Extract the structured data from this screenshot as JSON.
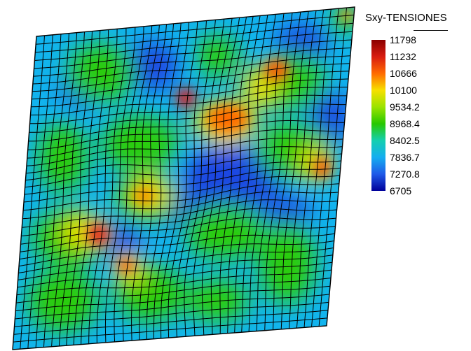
{
  "legend": {
    "title": "Sxy-TENSIONES",
    "ticks": [
      "11798",
      "11232",
      "10666",
      "10100",
      "9534.2",
      "8968.4",
      "8402.5",
      "7836.7",
      "7270.8",
      "6705"
    ],
    "colors": [
      "#8b0000",
      "#d81c10",
      "#ff6a00",
      "#f7e000",
      "#9be300",
      "#27c800",
      "#14cfb0",
      "#14aef0",
      "#1f5ae8",
      "#00009a"
    ]
  },
  "contour_hotspots": [
    {
      "level": "red",
      "center": [
        0.24,
        0.37
      ]
    },
    {
      "level": "red",
      "center": [
        0.82,
        0.65
      ]
    },
    {
      "level": "orange",
      "center": [
        0.66,
        0.25
      ]
    },
    {
      "level": "orange",
      "center": [
        0.74,
        0.48
      ]
    }
  ]
}
